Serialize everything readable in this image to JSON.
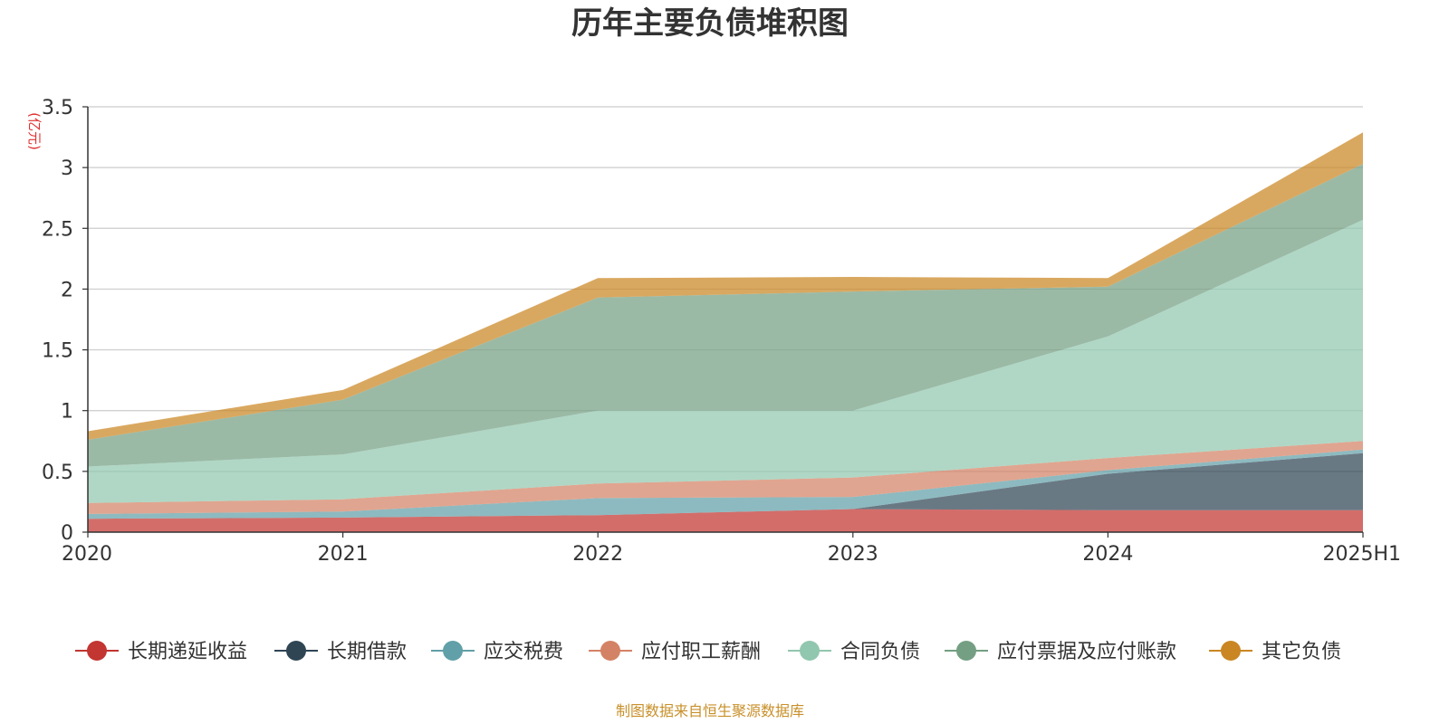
{
  "chart_data": {
    "type": "area",
    "stacked": true,
    "title": "历年主要负债堆积图",
    "ylabel": "(亿元)",
    "xlabel": "",
    "categories": [
      "2020",
      "2021",
      "2022",
      "2023",
      "2024",
      "2025H1"
    ],
    "ylim": [
      0,
      3.5
    ],
    "yticks": [
      "0",
      "0.5",
      "1",
      "1.5",
      "2",
      "2.5",
      "3",
      "3.5"
    ],
    "grid": true,
    "legend_position": "bottom",
    "series": [
      {
        "name": "长期递延收益",
        "color": "#c23531",
        "values": [
          0.11,
          0.12,
          0.14,
          0.19,
          0.18,
          0.18
        ]
      },
      {
        "name": "长期借款",
        "color": "#2f4554",
        "values": [
          0,
          0,
          0,
          0,
          0.3,
          0.47
        ]
      },
      {
        "name": "应交税费",
        "color": "#61a0a8",
        "values": [
          0.04,
          0.05,
          0.14,
          0.1,
          0.03,
          0.03
        ]
      },
      {
        "name": "应付职工薪酬",
        "color": "#d48265",
        "values": [
          0.09,
          0.1,
          0.12,
          0.16,
          0.1,
          0.07
        ]
      },
      {
        "name": "合同负债",
        "color": "#91c7ae",
        "values": [
          0.3,
          0.37,
          0.6,
          0.55,
          1.0,
          1.82
        ]
      },
      {
        "name": "应付票据及应付账款",
        "color": "#749f83",
        "values": [
          0.22,
          0.45,
          0.93,
          0.98,
          0.41,
          0.46
        ]
      },
      {
        "name": "其它负债",
        "color": "#ca8622",
        "values": [
          0.07,
          0.08,
          0.16,
          0.12,
          0.07,
          0.26
        ]
      }
    ],
    "source": "制图数据来自恒生聚源数据库"
  }
}
